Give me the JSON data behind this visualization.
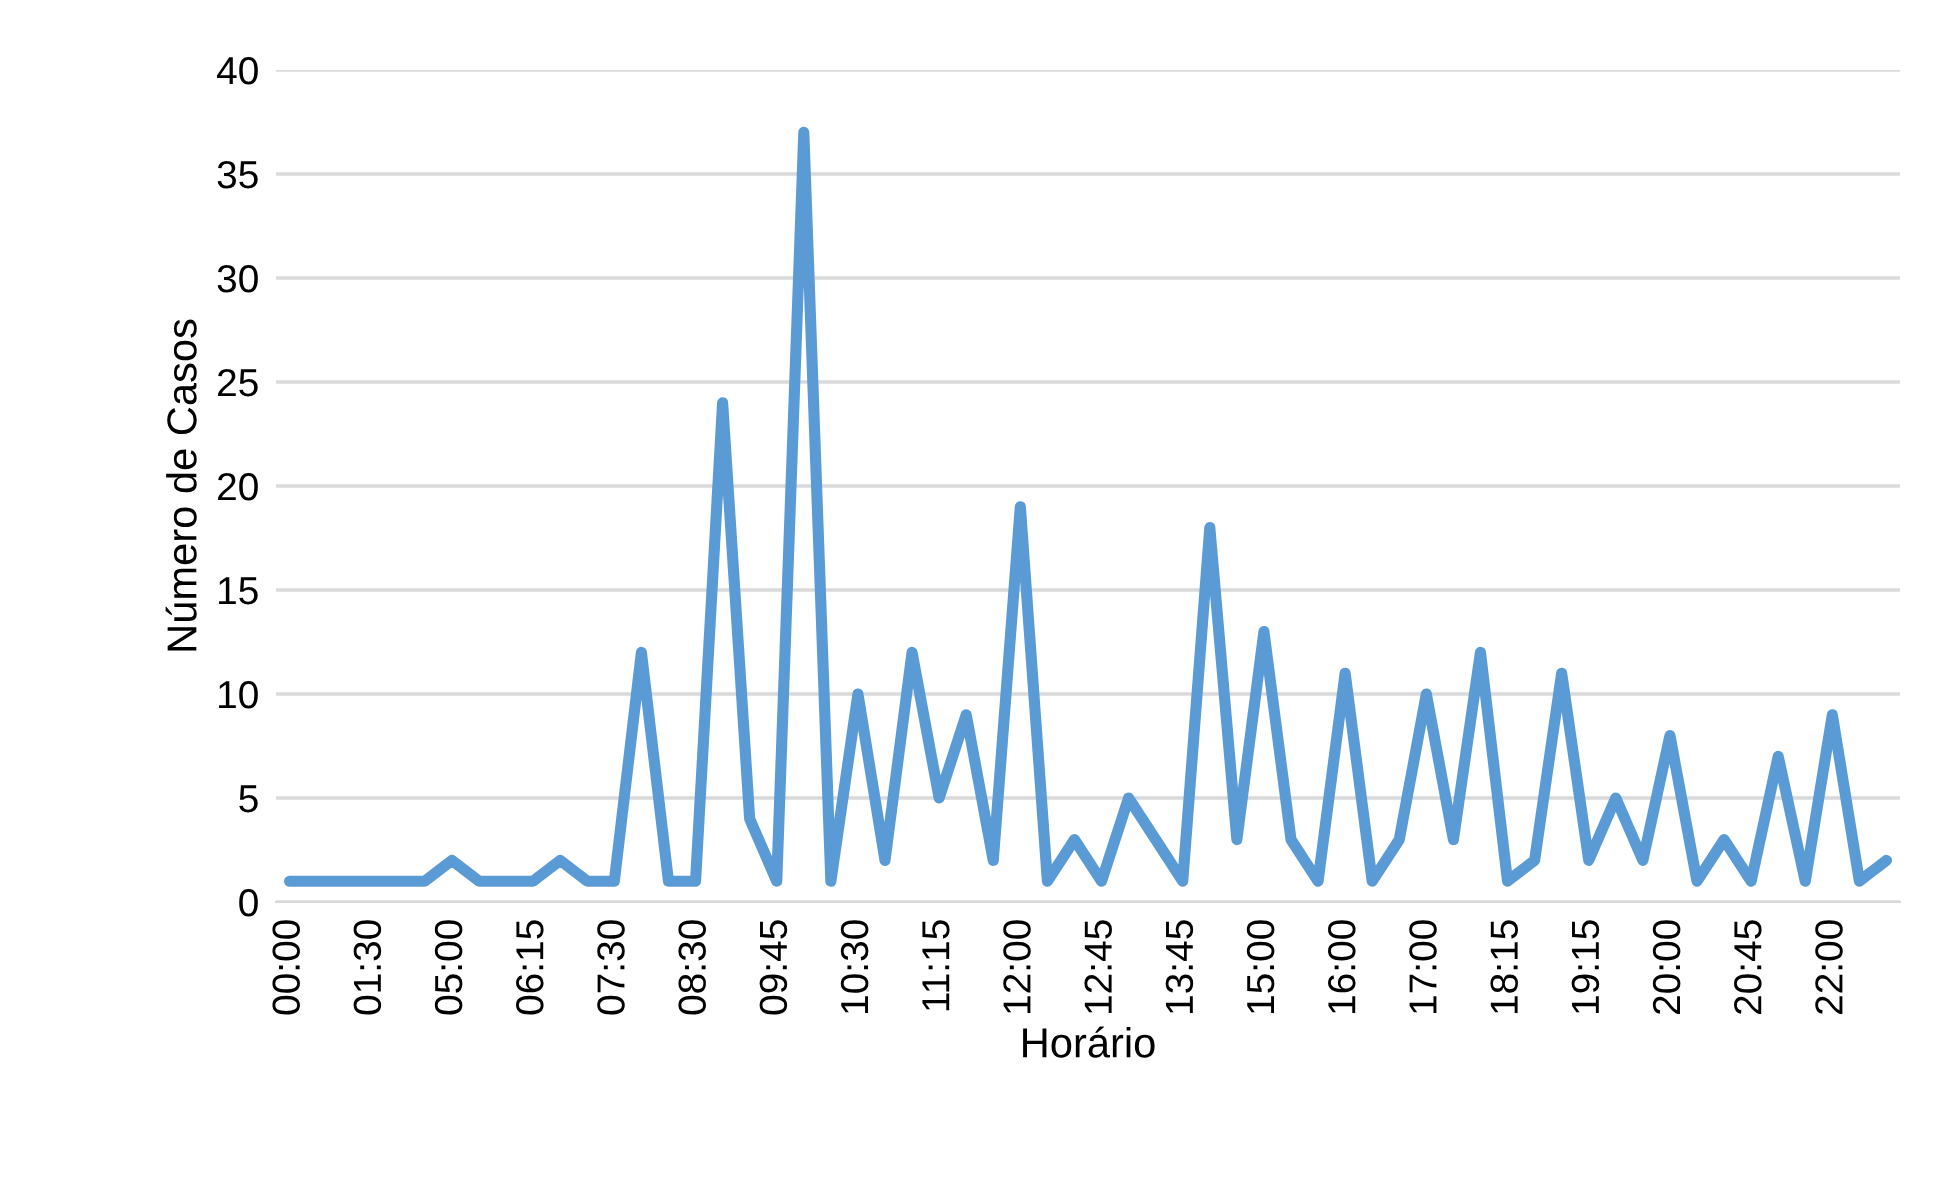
{
  "chart_data": {
    "type": "line",
    "xlabel": "Horário",
    "ylabel": "Número de Casos",
    "categories": [
      "00:00",
      null,
      null,
      "01:30",
      null,
      null,
      "05:00",
      null,
      null,
      "06:15",
      null,
      null,
      "07:30",
      null,
      null,
      "08:30",
      null,
      null,
      "09:45",
      null,
      null,
      "10:30",
      null,
      null,
      "11:15",
      null,
      null,
      "12:00",
      null,
      null,
      "12:45",
      null,
      null,
      "13:45",
      null,
      null,
      "15:00",
      null,
      null,
      "16:00",
      null,
      null,
      "17:00",
      null,
      null,
      "18:15",
      null,
      null,
      "19:15",
      null,
      null,
      "20:00",
      null,
      null,
      "20:45",
      null,
      null,
      "22:00",
      null,
      null
    ],
    "series": [
      {
        "color": "#5b9bd5",
        "values": [
          1,
          1,
          1,
          1,
          1,
          1,
          2,
          1,
          1,
          1,
          2,
          1,
          1,
          12,
          1,
          1,
          24,
          4,
          1,
          37,
          1,
          10,
          2,
          12,
          5,
          9,
          2,
          19,
          1,
          3,
          1,
          5,
          3,
          1,
          18,
          3,
          13,
          3,
          1,
          11,
          1,
          3,
          10,
          3,
          12,
          1,
          2,
          11,
          2,
          5,
          2,
          8,
          1,
          3,
          1,
          7,
          1,
          9,
          1,
          2
        ]
      }
    ],
    "ylim": [
      0,
      40
    ],
    "yticks": [
      0,
      5,
      10,
      15,
      20,
      25,
      30,
      35,
      40
    ],
    "grid": "y",
    "legend": false
  }
}
